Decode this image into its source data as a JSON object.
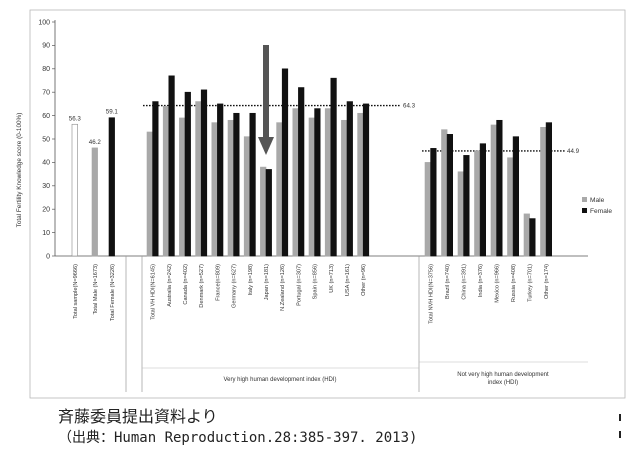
{
  "chart_data": {
    "type": "bar",
    "title": "",
    "ylabel": "Total Fertility Knowledge score (0-100%)",
    "ylim": [
      0,
      100
    ],
    "yticks": [
      0,
      10,
      20,
      30,
      40,
      50,
      60,
      70,
      80,
      90,
      100
    ],
    "legend": {
      "placement": "right",
      "entries": [
        "Male",
        "Female"
      ]
    },
    "colors": {
      "male": "#a9a9a9",
      "female": "#111111",
      "total_sample": "#ffffff",
      "total_male": "#a9a9a9",
      "total_female": "#111111"
    },
    "totals": [
      {
        "category": "Total sample(N=9666)",
        "value": 56.3,
        "label": "56.3"
      },
      {
        "category": "Total Male (N=1673)",
        "value": 46.2,
        "label": "46.2"
      },
      {
        "category": "Total Female (N=3226)",
        "value": 59.1,
        "label": "59.1"
      }
    ],
    "groups": [
      {
        "name": "Very high human development index (HDI)",
        "reference_line": {
          "value": 64.3,
          "label": "64.3"
        },
        "categories": [
          "Total VH HDI(N=6145)",
          "Australia (n=242)",
          "Canada (n=402)",
          "Denmark (n=527)",
          "France(n=809)",
          "Germany (n=627)",
          "Italy (n=198)",
          "Japan (n=181)",
          "N.Zealand (n=126)",
          "Portugal (n=307)",
          "Spain (n=856)",
          "UK (n=713)",
          "USA (n=161)",
          "Other (n=96)"
        ],
        "series": [
          {
            "name": "Male",
            "values": [
              53,
              64,
              59,
              66,
              57,
              58,
              51,
              38,
              57,
              63,
              59,
              63,
              58,
              61
            ]
          },
          {
            "name": "Female",
            "values": [
              66,
              77,
              70,
              71,
              65,
              61,
              61,
              37,
              80,
              72,
              63,
              76,
              66,
              65
            ]
          }
        ]
      },
      {
        "name": "Not very high human development index (HDI)",
        "reference_line": {
          "value": 44.9,
          "label": "44.9"
        },
        "categories": [
          "Total NVH HDI(N=3756)",
          "Brazil (n=740)",
          "China (n=391)",
          "India (n=376)",
          "Mexico (n=966)",
          "Russia (n=408)",
          "Turkey (n=701)",
          "Other (n=174)"
        ],
        "series": [
          {
            "name": "Male",
            "values": [
              40,
              54,
              36,
              45,
              56,
              42,
              18,
              55
            ]
          },
          {
            "name": "Female",
            "values": [
              46,
              52,
              43,
              48,
              58,
              51,
              16,
              57
            ]
          }
        ]
      }
    ],
    "annotation": {
      "type": "arrow",
      "target": "Japan (n=181)"
    }
  },
  "caption": {
    "line1": "斉藤委員提出資料より",
    "line2": "（出典：Human Reproduction.28:385-397. 2013)"
  }
}
